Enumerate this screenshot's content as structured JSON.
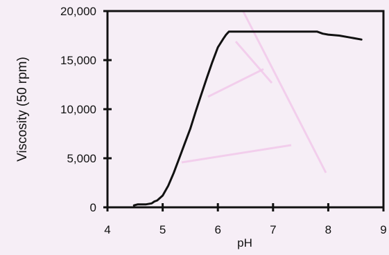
{
  "chart_data": {
    "type": "line",
    "title": "",
    "xlabel": "pH",
    "ylabel": "Viscosity (50 rpm)",
    "xlim": [
      4,
      9
    ],
    "ylim": [
      0,
      20000
    ],
    "x_ticks": [
      4,
      5,
      6,
      7,
      8,
      9
    ],
    "y_ticks": [
      0,
      5000,
      10000,
      15000,
      20000
    ],
    "x_tick_labels": [
      "4",
      "5",
      "6",
      "7",
      "8",
      "9"
    ],
    "y_tick_labels": [
      "0",
      "5,000",
      "10,000",
      "15,000",
      "20,000"
    ],
    "grid": false,
    "legend": "none",
    "colors": {
      "background": "#f6eef6",
      "line": "#111111",
      "axis": "#111111",
      "watermark": "#f2c7ea"
    },
    "series": [
      {
        "x": [
          4.48,
          4.55,
          4.7,
          4.8,
          4.85,
          4.9,
          5.0,
          5.1,
          5.2,
          5.3,
          5.4,
          5.5,
          5.6,
          5.7,
          5.8,
          5.9,
          6.0,
          6.1,
          6.15,
          6.2,
          6.25,
          6.3,
          7.0,
          7.8,
          7.9,
          8.0,
          8.2,
          8.4,
          8.6
        ],
        "values": [
          200,
          300,
          300,
          400,
          600,
          700,
          1200,
          2200,
          3500,
          5000,
          6500,
          8000,
          9800,
          11500,
          13200,
          14800,
          16300,
          17200,
          17600,
          17900,
          17900,
          17900,
          17900,
          17900,
          17700,
          17600,
          17500,
          17300,
          17100
        ]
      }
    ]
  }
}
